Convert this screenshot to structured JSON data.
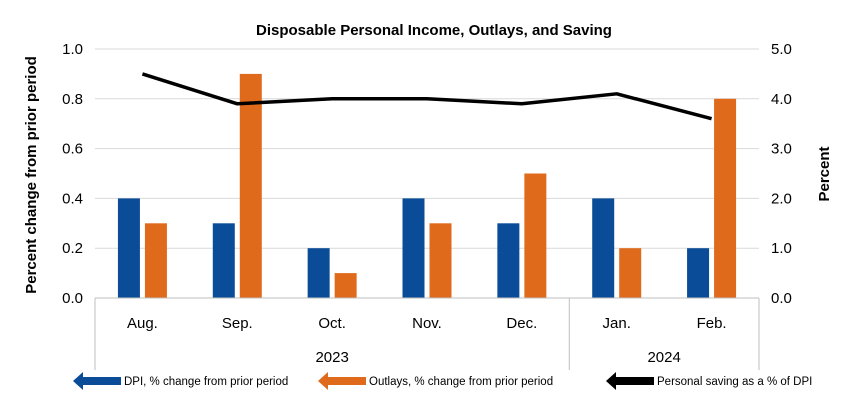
{
  "chart_data": {
    "type": "bar",
    "title": "Disposable Personal Income, Outlays, and Saving",
    "categories": [
      "Aug.",
      "Sep.",
      "Oct.",
      "Nov.",
      "Dec.",
      "Jan.",
      "Feb."
    ],
    "year_groups": [
      {
        "label": "2023",
        "start": 0,
        "end": 4
      },
      {
        "label": "2024",
        "start": 5,
        "end": 6
      }
    ],
    "series": [
      {
        "name": "DPI, % change from prior period",
        "type": "bar",
        "axis": "left",
        "color": "#0a4c97",
        "values": [
          0.4,
          0.3,
          0.2,
          0.4,
          0.3,
          0.4,
          0.2
        ]
      },
      {
        "name": "Outlays, % change from prior period",
        "type": "bar",
        "axis": "left",
        "color": "#e06a1b",
        "values": [
          0.3,
          0.9,
          0.1,
          0.3,
          0.5,
          0.2,
          0.8
        ]
      },
      {
        "name": "Personal saving as a % of DPI",
        "type": "line",
        "axis": "right",
        "color": "#000000",
        "values": [
          4.5,
          3.9,
          4.0,
          4.0,
          3.9,
          4.1,
          3.6
        ]
      }
    ],
    "ylabel": "Percent change from prior period",
    "y2label": "Percent",
    "ylim": [
      0,
      1.0
    ],
    "y2lim": [
      0,
      5.0
    ],
    "yticks": [
      "0.0",
      "0.2",
      "0.4",
      "0.6",
      "0.8",
      "1.0"
    ],
    "y2ticks": [
      "0.0",
      "1.0",
      "2.0",
      "3.0",
      "4.0",
      "5.0"
    ],
    "legend_position": "bottom",
    "grid": true
  }
}
